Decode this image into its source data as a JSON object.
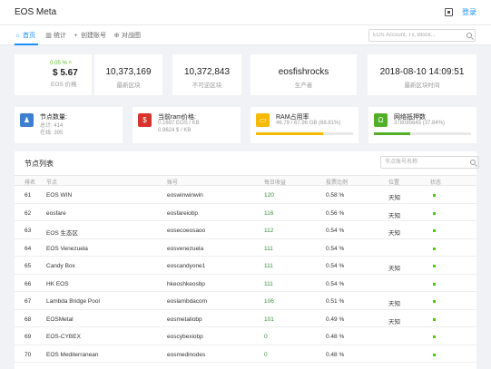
{
  "header": {
    "brand": "EOS Meta",
    "login": "登录"
  },
  "nav": {
    "items": [
      {
        "label": "首页",
        "icon": "home-icon",
        "active": true
      },
      {
        "label": "统计",
        "icon": "chart-icon",
        "active": false
      },
      {
        "label": "创建账号",
        "icon": "plus-icon",
        "active": false
      },
      {
        "label": "对战图",
        "icon": "globe-icon",
        "active": false
      }
    ],
    "search_placeholder": "EOS Account, Tx, Block..."
  },
  "stats": {
    "price_change": "0.05 %",
    "price": "$ 5.67",
    "price_label": "EOS 价格",
    "head_block": "10,373,169",
    "head_block_label": "最新区块",
    "irreversible_block": "10,372,843",
    "irreversible_block_label": "不可逆区块",
    "producer": "eosfishrocks",
    "producer_label": "生产者",
    "time": "2018-08-10 14:09:51",
    "time_label": "最新区块时间"
  },
  "info": {
    "nodes_title": "节点数量:",
    "nodes_total": "总计: 414",
    "nodes_online": "在线: 395",
    "ram_price_title": "当前ram价格:",
    "ram_price_eos": "0.1697 EOS / KB",
    "ram_price_usd": "0.9624 $ / KB",
    "ram_usage_title": "RAM占用率",
    "ram_usage_detail": "46.79 / 67.96 GB (68.81%)",
    "ram_usage_fraction": 0.6881,
    "staked_title": "网络抵押数",
    "staked_detail": "378085645 (37.84%)",
    "staked_fraction": 0.3784,
    "colors": {
      "nodes": "#3f7fd0",
      "ram_price": "#d9342b",
      "ram_usage": "#f5b900",
      "staked": "#52b026"
    }
  },
  "table": {
    "title": "节点列表",
    "search_placeholder": "节点账号名称",
    "headers": [
      "排名",
      "节点",
      "账号",
      "每日收益",
      "投票比例",
      "位置",
      "状态"
    ],
    "rows": [
      {
        "rank": "61",
        "name": "EOS WIN",
        "account": "eoswinwinwin",
        "reward": "120",
        "votes": "0.58 %",
        "location": "天知",
        "status": true
      },
      {
        "rank": "62",
        "name": "eosfare",
        "account": "eosfareiobp",
        "reward": "116",
        "votes": "0.56 %",
        "location": "天知",
        "status": true
      },
      {
        "rank": "63",
        "name": "EOS 生态区",
        "account": "eosecoeosaoo",
        "reward": "112",
        "votes": "0.54 %",
        "location": "天知",
        "status": true
      },
      {
        "rank": "64",
        "name": "EOS Venezuela",
        "account": "eosvenezuela",
        "reward": "111",
        "votes": "0.54 %",
        "location": "",
        "status": true
      },
      {
        "rank": "65",
        "name": "Candy Box",
        "account": "eoscandyone1",
        "reward": "111",
        "votes": "0.54 %",
        "location": "天知",
        "status": true
      },
      {
        "rank": "66",
        "name": "HK EOS",
        "account": "hkeoshkeosbp",
        "reward": "111",
        "votes": "0.54 %",
        "location": "",
        "status": true
      },
      {
        "rank": "67",
        "name": "Lambda Bridge Pool",
        "account": "eoslambdacom",
        "reward": "106",
        "votes": "0.51 %",
        "location": "天知",
        "status": true
      },
      {
        "rank": "68",
        "name": "EOSMetal",
        "account": "eosmetaliobp",
        "reward": "101",
        "votes": "0.49 %",
        "location": "天知",
        "status": true
      },
      {
        "rank": "69",
        "name": "EOS-CYBEX",
        "account": "eoscybexiobp",
        "reward": "0",
        "votes": "0.48 %",
        "location": "",
        "status": true
      },
      {
        "rank": "70",
        "name": "EOS Mediterranean",
        "account": "eosmedinodes",
        "reward": "0",
        "votes": "0.48 %",
        "location": "",
        "status": true
      }
    ]
  }
}
